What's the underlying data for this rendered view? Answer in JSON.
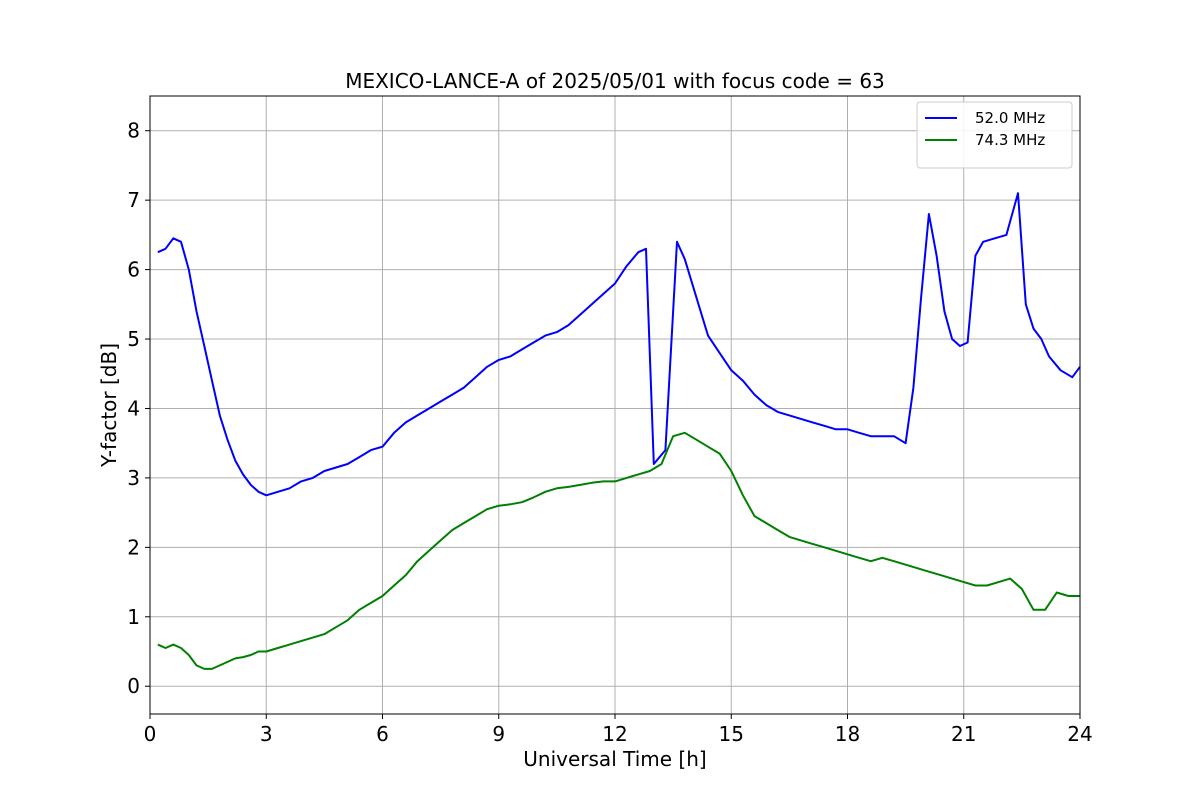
{
  "chart_data": {
    "type": "line",
    "title": "MEXICO-LANCE-A of 2025/05/01 with focus code = 63",
    "xlabel": "Universal Time [h]",
    "ylabel": "Y-factor [dB]",
    "xlim": [
      0,
      24
    ],
    "ylim": [
      -0.4,
      8.5
    ],
    "xticks": [
      0,
      3,
      6,
      9,
      12,
      15,
      18,
      21,
      24
    ],
    "yticks": [
      0,
      1,
      2,
      3,
      4,
      5,
      6,
      7,
      8
    ],
    "grid": true,
    "legend_position": "top-right",
    "series": [
      {
        "name": "52.0 MHz",
        "color": "#0000ff",
        "x": [
          0.2,
          0.4,
          0.6,
          0.8,
          1.0,
          1.2,
          1.4,
          1.6,
          1.8,
          2.0,
          2.2,
          2.4,
          2.6,
          2.8,
          3.0,
          3.3,
          3.6,
          3.9,
          4.2,
          4.5,
          4.8,
          5.1,
          5.4,
          5.7,
          6.0,
          6.3,
          6.6,
          6.9,
          7.2,
          7.5,
          7.8,
          8.1,
          8.4,
          8.7,
          9.0,
          9.3,
          9.6,
          9.9,
          10.2,
          10.5,
          10.8,
          11.1,
          11.4,
          11.7,
          12.0,
          12.3,
          12.6,
          12.8,
          13.0,
          13.3,
          13.6,
          13.8,
          14.1,
          14.4,
          14.7,
          15.0,
          15.3,
          15.6,
          15.9,
          16.2,
          16.5,
          16.8,
          17.1,
          17.4,
          17.7,
          18.0,
          18.3,
          18.6,
          18.9,
          19.2,
          19.5,
          19.7,
          19.9,
          20.1,
          20.3,
          20.5,
          20.7,
          20.9,
          21.1,
          21.3,
          21.5,
          21.8,
          22.1,
          22.4,
          22.6,
          22.8,
          23.0,
          23.2,
          23.5,
          23.8,
          24.0
        ],
        "values": [
          6.25,
          6.3,
          6.45,
          6.4,
          6.0,
          5.4,
          4.9,
          4.4,
          3.9,
          3.55,
          3.25,
          3.05,
          2.9,
          2.8,
          2.75,
          2.8,
          2.85,
          2.95,
          3.0,
          3.1,
          3.15,
          3.2,
          3.3,
          3.4,
          3.45,
          3.65,
          3.8,
          3.9,
          4.0,
          4.1,
          4.2,
          4.3,
          4.45,
          4.6,
          4.7,
          4.75,
          4.85,
          4.95,
          5.05,
          5.1,
          5.2,
          5.35,
          5.5,
          5.65,
          5.8,
          6.05,
          6.25,
          6.3,
          3.2,
          3.4,
          6.4,
          6.15,
          5.6,
          5.05,
          4.8,
          4.55,
          4.4,
          4.2,
          4.05,
          3.95,
          3.9,
          3.85,
          3.8,
          3.75,
          3.7,
          3.7,
          3.65,
          3.6,
          3.6,
          3.6,
          3.5,
          4.3,
          5.6,
          6.8,
          6.2,
          5.4,
          5.0,
          4.9,
          4.95,
          6.2,
          6.4,
          6.45,
          6.5,
          7.1,
          5.5,
          5.15,
          5.0,
          4.75,
          4.55,
          4.45,
          4.6
        ]
      },
      {
        "name": "74.3 MHz",
        "color": "#008000",
        "x": [
          0.2,
          0.4,
          0.6,
          0.8,
          1.0,
          1.2,
          1.4,
          1.6,
          1.8,
          2.0,
          2.2,
          2.4,
          2.6,
          2.8,
          3.0,
          3.3,
          3.6,
          3.9,
          4.2,
          4.5,
          4.8,
          5.1,
          5.4,
          5.7,
          6.0,
          6.3,
          6.6,
          6.9,
          7.2,
          7.5,
          7.8,
          8.1,
          8.4,
          8.7,
          9.0,
          9.3,
          9.6,
          9.9,
          10.2,
          10.5,
          10.8,
          11.1,
          11.4,
          11.7,
          12.0,
          12.3,
          12.6,
          12.9,
          13.2,
          13.5,
          13.8,
          14.1,
          14.4,
          14.7,
          15.0,
          15.3,
          15.6,
          15.9,
          16.2,
          16.5,
          16.8,
          17.1,
          17.4,
          17.7,
          18.0,
          18.3,
          18.6,
          18.9,
          19.2,
          19.5,
          19.8,
          20.1,
          20.4,
          20.7,
          21.0,
          21.3,
          21.6,
          21.9,
          22.2,
          22.5,
          22.8,
          23.1,
          23.4,
          23.7,
          24.0
        ],
        "values": [
          0.6,
          0.55,
          0.6,
          0.55,
          0.45,
          0.3,
          0.25,
          0.25,
          0.3,
          0.35,
          0.4,
          0.42,
          0.45,
          0.5,
          0.5,
          0.55,
          0.6,
          0.65,
          0.7,
          0.75,
          0.85,
          0.95,
          1.1,
          1.2,
          1.3,
          1.45,
          1.6,
          1.8,
          1.95,
          2.1,
          2.25,
          2.35,
          2.45,
          2.55,
          2.6,
          2.62,
          2.65,
          2.72,
          2.8,
          2.85,
          2.87,
          2.9,
          2.93,
          2.95,
          2.95,
          3.0,
          3.05,
          3.1,
          3.2,
          3.6,
          3.65,
          3.55,
          3.45,
          3.35,
          3.1,
          2.75,
          2.45,
          2.35,
          2.25,
          2.15,
          2.1,
          2.05,
          2.0,
          1.95,
          1.9,
          1.85,
          1.8,
          1.85,
          1.8,
          1.75,
          1.7,
          1.65,
          1.6,
          1.55,
          1.5,
          1.45,
          1.45,
          1.5,
          1.55,
          1.4,
          1.1,
          1.1,
          1.35,
          1.3,
          1.3
        ]
      }
    ]
  }
}
